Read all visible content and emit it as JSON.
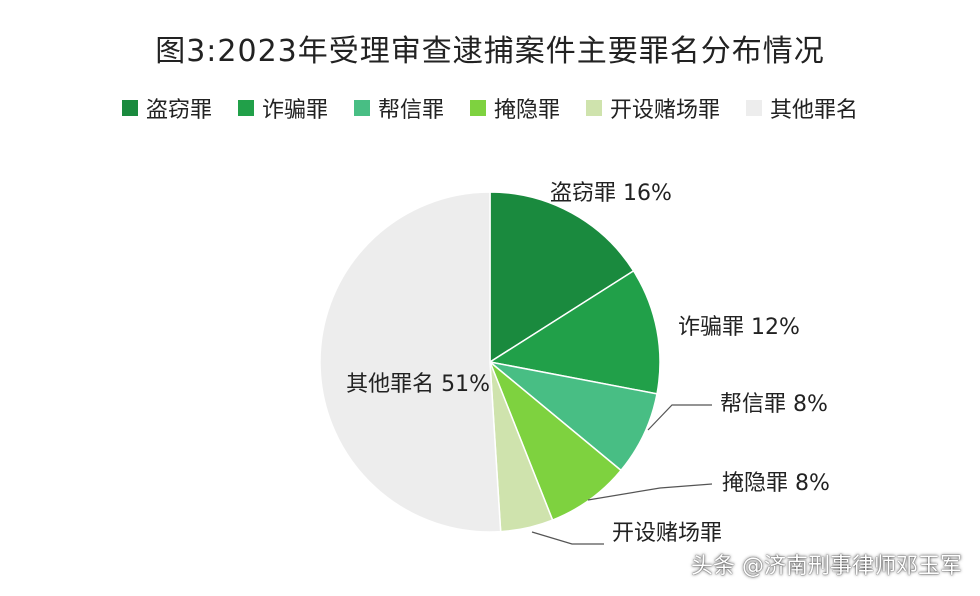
{
  "chart_data": {
    "type": "pie",
    "title": "图3:2023年受理审查逮捕案件主要罪名分布情况",
    "legend_position": "top",
    "slices": [
      {
        "name": "盗窃罪",
        "value": 16,
        "label": "盗窃罪 16%",
        "color": "#1a8a3e"
      },
      {
        "name": "诈骗罪",
        "value": 12,
        "label": "诈骗罪 12%",
        "color": "#21a049"
      },
      {
        "name": "帮信罪",
        "value": 8,
        "label": "帮信罪 8%",
        "color": "#48be84"
      },
      {
        "name": "掩隐罪",
        "value": 8,
        "label": "掩隐罪 8%",
        "color": "#7ed23f"
      },
      {
        "name": "开设赌场罪",
        "value": 5,
        "label": "开设赌场罪",
        "color": "#cfe3ad"
      },
      {
        "name": "其他罪名",
        "value": 51,
        "label": "其他罪名 51%",
        "color": "#ededed"
      }
    ]
  },
  "watermark": "头条 @济南刑事律师邓玉军"
}
